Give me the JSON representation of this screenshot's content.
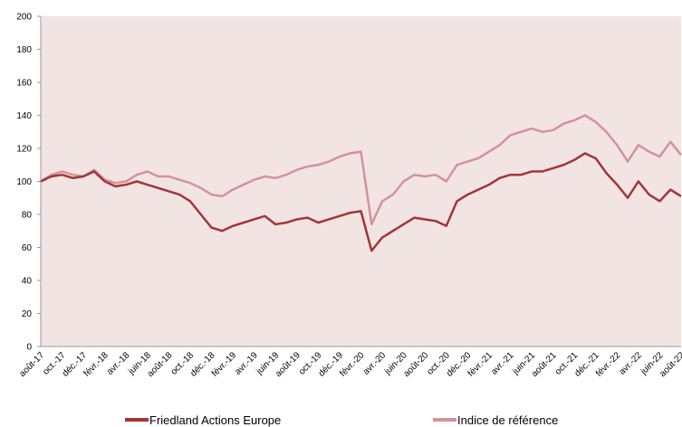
{
  "chart_data": {
    "type": "line",
    "categories": [
      "août-17",
      null,
      "oct.-17",
      null,
      "déc.-17",
      null,
      "févr.-18",
      null,
      "avr.-18",
      null,
      "juin-18",
      null,
      "août-18",
      null,
      "oct.-18",
      null,
      "déc.-18",
      null,
      "févr.-19",
      null,
      "avr.-19",
      null,
      "juin-19",
      null,
      "août-19",
      null,
      "oct.-19",
      null,
      "déc.-19",
      null,
      "févr.-20",
      null,
      "avr.-20",
      null,
      "juin-20",
      null,
      "août-20",
      null,
      "oct.-20",
      null,
      "déc.-20",
      null,
      "févr.-21",
      null,
      "avr.-21",
      null,
      "juin-21",
      null,
      "août-21",
      null,
      "oct.-21",
      null,
      "déc.-21",
      null,
      "févr.-22",
      null,
      "avr.-22",
      null,
      "juin-22",
      null,
      "août-22"
    ],
    "series": [
      {
        "name": "Friedland Actions Europe",
        "color": "#a33535",
        "values": [
          100,
          103,
          104,
          102,
          103,
          106,
          100,
          97,
          98,
          100,
          98,
          96,
          94,
          92,
          88,
          80,
          72,
          70,
          73,
          75,
          77,
          79,
          74,
          75,
          77,
          78,
          75,
          77,
          79,
          81,
          82,
          58,
          66,
          70,
          74,
          78,
          77,
          76,
          73,
          88,
          92,
          95,
          98,
          102,
          104,
          104,
          106,
          106,
          108,
          110,
          113,
          117,
          114,
          105,
          98,
          90,
          100,
          92,
          88,
          95,
          91
        ]
      },
      {
        "name": "Indice de référence",
        "color": "#d4929a",
        "values": [
          100,
          104,
          106,
          104,
          103,
          107,
          101,
          99,
          100,
          104,
          106,
          103,
          103,
          101,
          99,
          96,
          92,
          91,
          95,
          98,
          101,
          103,
          102,
          104,
          107,
          109,
          110,
          112,
          115,
          117,
          118,
          74,
          88,
          92,
          100,
          104,
          103,
          104,
          100,
          110,
          112,
          114,
          118,
          122,
          128,
          130,
          132,
          130,
          131,
          135,
          137,
          140,
          136,
          130,
          122,
          112,
          122,
          118,
          115,
          124,
          116
        ]
      }
    ],
    "ylim": [
      0,
      200
    ],
    "yticks": [
      0,
      20,
      40,
      60,
      80,
      100,
      120,
      140,
      160,
      180,
      200
    ],
    "plot_background": "#f3e4e4",
    "grid": false,
    "legend": "bottom"
  }
}
